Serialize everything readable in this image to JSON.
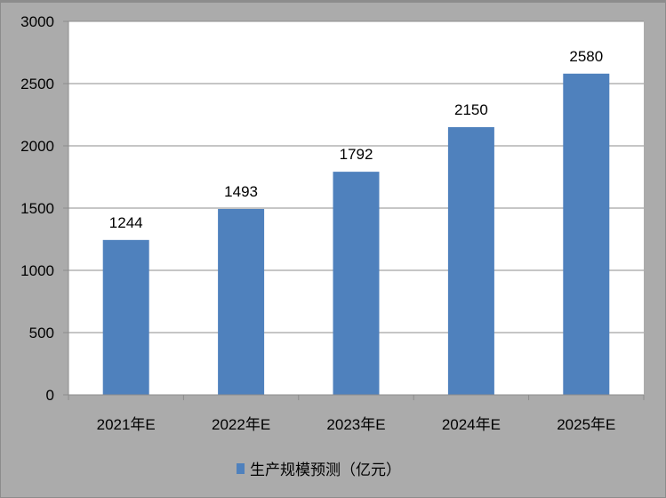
{
  "chart_data": {
    "type": "bar",
    "categories": [
      "2021年E",
      "2022年E",
      "2023年E",
      "2024年E",
      "2025年E"
    ],
    "series": [
      {
        "name": "生产规模预测（亿元）",
        "values": [
          1244,
          1493,
          1792,
          2150,
          2580
        ],
        "color": "#4f81bd"
      }
    ],
    "data_labels": [
      "1244",
      "1493",
      "1792",
      "2150",
      "2580"
    ],
    "y_ticks": [
      "0",
      "500",
      "1000",
      "1500",
      "2000",
      "2500",
      "3000"
    ],
    "ylim": [
      0,
      3000
    ],
    "grid": true,
    "legend": "bottom",
    "background_color": "#ababab",
    "plot_background": "#ffffff"
  }
}
